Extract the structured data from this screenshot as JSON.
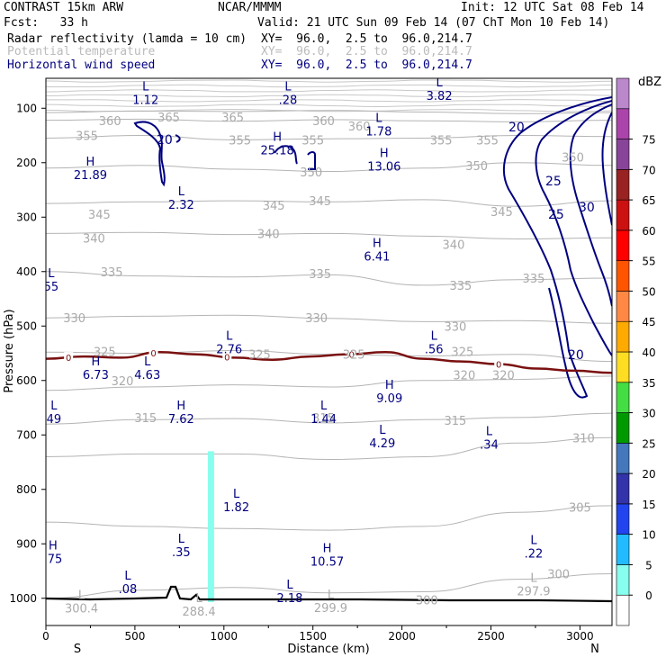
{
  "header": {
    "model": "CONTRAST 15km ARW",
    "org": "NCAR/MMMM",
    "init": "Init: 12 UTC Sat 08 Feb 14",
    "fcst": "Fcst:   33 h",
    "valid": "Valid: 21 UTC Sun 09 Feb 14 (07 ChT Mon 10 Feb 14)",
    "fields": [
      {
        "name": "Radar reflectivity (lamda = 10 cm)",
        "xy": "XY=  96.0,  2.5 to  96.0,214.7",
        "color": "#000000"
      },
      {
        "name": "Potential temperature",
        "xy": "XY=  96.0,  2.5 to  96.0,214.7",
        "color": "#bbbbbb"
      },
      {
        "name": "Horizontal wind speed",
        "xy": "XY=  96.0,  2.5 to  96.0,214.7",
        "color": "#000080"
      }
    ]
  },
  "chart_data": {
    "type": "contour",
    "xlabel": "Distance (km)",
    "ylabel": "Pressure (hPa)",
    "xlim": [
      0,
      3180
    ],
    "ylim": [
      1050,
      45
    ],
    "x_ticks": [
      0,
      500,
      1000,
      1500,
      2000,
      2500,
      3000
    ],
    "y_ticks": [
      100,
      200,
      300,
      400,
      500,
      600,
      700,
      800,
      900,
      1000
    ],
    "x_end_labels": {
      "left": "S",
      "right": "N"
    },
    "colorbar": {
      "title": "dBZ",
      "levels": [
        0,
        5,
        10,
        15,
        20,
        25,
        30,
        35,
        40,
        45,
        50,
        55,
        60,
        65,
        70,
        75
      ],
      "colors": [
        "#ffffff",
        "#88ffee",
        "#22bbff",
        "#2244ee",
        "#3333aa",
        "#4477bb",
        "#009900",
        "#44dd44",
        "#ffdd22",
        "#ffaa00",
        "#ff8844",
        "#ff5500",
        "#ff0000",
        "#cc1111",
        "#992222",
        "#884499",
        "#aa44aa",
        "#bb88cc"
      ]
    },
    "theta_levels": [
      {
        "value": 365,
        "label": "365",
        "label_x": 1050,
        "label_p": 116,
        "y": [
          108,
          105,
          106,
          104,
          107,
          110,
          108
        ]
      },
      {
        "value": 360,
        "label": "360",
        "label_x": 360,
        "label_p": 123,
        "y": [
          122,
          120,
          124,
          121,
          123,
          125,
          122
        ]
      },
      {
        "value": 355,
        "label": "355",
        "label_x": 1090,
        "label_p": 158,
        "y": [
          155,
          150,
          158,
          156,
          155,
          150,
          152
        ]
      },
      {
        "value": 350,
        "label": "350",
        "label_x": 1490,
        "label_p": 217,
        "y": [
          210,
          205,
          212,
          216,
          210,
          200,
          205
        ]
      },
      {
        "value": 345,
        "label": "345",
        "label_x": 1540,
        "label_p": 270,
        "y": [
          275,
          272,
          270,
          272,
          268,
          280,
          270
        ]
      },
      {
        "value": 340,
        "label": "340",
        "label_x": 1250,
        "label_p": 330,
        "y": [
          330,
          328,
          332,
          330,
          335,
          340,
          338
        ]
      },
      {
        "value": 335,
        "label": "335",
        "label_x": 2330,
        "label_p": 425,
        "y": [
          400,
          408,
          410,
          406,
          425,
          415,
          412
        ]
      },
      {
        "value": 330,
        "label": "330",
        "label_x": 1520,
        "label_p": 485,
        "y": [
          485,
          482,
          480,
          486,
          492,
          490,
          495
        ]
      },
      {
        "value": 325,
        "label": "325",
        "label_x": 1200,
        "label_p": 552,
        "y": [
          548,
          550,
          545,
          552,
          555,
          552,
          565
        ]
      },
      {
        "value": 320,
        "label": "320",
        "label_x": 2570,
        "label_p": 590,
        "y": [
          618,
          612,
          608,
          612,
          600,
          598,
          592
        ]
      },
      {
        "value": 315,
        "label": "315",
        "label_x": 2300,
        "label_p": 673,
        "y": [
          680,
          672,
          670,
          678,
          672,
          668,
          660
        ]
      },
      {
        "value": 310,
        "label": "310",
        "label_x": 3020,
        "label_p": 705,
        "y": [
          740,
          735,
          735,
          745,
          740,
          715,
          705
        ]
      },
      {
        "value": 305,
        "label": "305",
        "label_x": 3000,
        "label_p": 833,
        "y": [
          860,
          868,
          872,
          875,
          868,
          842,
          830
        ]
      },
      {
        "value": 300,
        "label": "300",
        "label_x": 2880,
        "label_p": 955,
        "y": [
          1000,
          985,
          980,
          990,
          988,
          965,
          955
        ]
      }
    ],
    "freezing_level": {
      "label": "0",
      "p": [
        560,
        556,
        558,
        548,
        552,
        558,
        562,
        556,
        552,
        548,
        560,
        565,
        570,
        578,
        582,
        586
      ]
    },
    "wind_contour_labels": [
      "20",
      "20",
      "25",
      "30",
      "25",
      "20"
    ],
    "extrema": [
      {
        "type": "L",
        "value": "1.12",
        "x": 560,
        "p": 67
      },
      {
        "type": "L",
        "value": ".28",
        "x": 1360,
        "p": 67
      },
      {
        "type": "L",
        "value": "3.82",
        "x": 2210,
        "p": 60
      },
      {
        "type": "L",
        "value": "1.78",
        "x": 1870,
        "p": 125
      },
      {
        "type": "H",
        "value": "25.18",
        "x": 1300,
        "p": 160
      },
      {
        "type": "H",
        "value": "13.06",
        "x": 1900,
        "p": 190
      },
      {
        "type": "H",
        "value": "21.89",
        "x": 250,
        "p": 205
      },
      {
        "type": "L",
        "value": "2.32",
        "x": 760,
        "p": 260
      },
      {
        "type": "H",
        "value": "6.41",
        "x": 1860,
        "p": 355
      },
      {
        "type": "L",
        "value": "55",
        "x": 30,
        "p": 410
      },
      {
        "type": "L",
        "value": "2.76",
        "x": 1030,
        "p": 525
      },
      {
        "type": "L",
        "value": ".56",
        "x": 2180,
        "p": 525
      },
      {
        "type": "H",
        "value": "6.73",
        "x": 280,
        "p": 572
      },
      {
        "type": "L",
        "value": "4.63",
        "x": 570,
        "p": 572
      },
      {
        "type": "H",
        "value": "9.09",
        "x": 1930,
        "p": 615
      },
      {
        "type": "L",
        "value": "49",
        "x": 45,
        "p": 653
      },
      {
        "type": "H",
        "value": "7.62",
        "x": 760,
        "p": 653
      },
      {
        "type": "L",
        "value": "1.44",
        "x": 1560,
        "p": 653
      },
      {
        "type": "L",
        "value": "4.29",
        "x": 1890,
        "p": 698
      },
      {
        "type": "L",
        "value": ".34",
        "x": 2490,
        "p": 700
      },
      {
        "type": "L",
        "value": "1.82",
        "x": 1070,
        "p": 815
      },
      {
        "type": "L",
        "value": ".35",
        "x": 760,
        "p": 898
      },
      {
        "type": "H",
        "value": "10.57",
        "x": 1580,
        "p": 915
      },
      {
        "type": "L",
        "value": ".22",
        "x": 2740,
        "p": 900
      },
      {
        "type": "H",
        "value": ".75",
        "x": 40,
        "p": 910
      },
      {
        "type": "L",
        "value": ".08",
        "x": 460,
        "p": 966
      },
      {
        "type": "L",
        "value": "2.18",
        "x": 1370,
        "p": 982
      },
      {
        "type": "L",
        "value": "300.4",
        "x": 200,
        "p": 1001,
        "faint": true
      },
      {
        "type": "L",
        "value": "288.4",
        "x": 860,
        "p": 1007,
        "faint": true
      },
      {
        "type": "L",
        "value": "299.9",
        "x": 1600,
        "p": 1000,
        "faint": true
      },
      {
        "type": "L",
        "value": "297.9",
        "x": 2740,
        "p": 970,
        "faint": true
      }
    ],
    "extra_theta_labels": [
      {
        "label": "365",
        "x": 690,
        "p": 116
      },
      {
        "label": "360",
        "x": 1560,
        "p": 123
      },
      {
        "label": "360",
        "x": 1760,
        "p": 133
      },
      {
        "label": "355",
        "x": 1500,
        "p": 158
      },
      {
        "label": "355",
        "x": 2220,
        "p": 158
      },
      {
        "label": "355",
        "x": 2480,
        "p": 158
      },
      {
        "label": "355",
        "x": 230,
        "p": 150
      },
      {
        "label": "350",
        "x": 2420,
        "p": 205
      },
      {
        "label": "350",
        "x": 2960,
        "p": 190
      },
      {
        "label": "345",
        "x": 1280,
        "p": 278
      },
      {
        "label": "345",
        "x": 300,
        "p": 295
      },
      {
        "label": "345",
        "x": 2560,
        "p": 290
      },
      {
        "label": "340",
        "x": 270,
        "p": 338
      },
      {
        "label": "340",
        "x": 2290,
        "p": 350
      },
      {
        "label": "335",
        "x": 370,
        "p": 400
      },
      {
        "label": "335",
        "x": 1540,
        "p": 404
      },
      {
        "label": "335",
        "x": 2740,
        "p": 412
      },
      {
        "label": "330",
        "x": 160,
        "p": 485
      },
      {
        "label": "330",
        "x": 2300,
        "p": 500
      },
      {
        "label": "325",
        "x": 330,
        "p": 547
      },
      {
        "label": "325",
        "x": 1730,
        "p": 552
      },
      {
        "label": "325",
        "x": 2340,
        "p": 547
      },
      {
        "label": "320",
        "x": 430,
        "p": 600
      },
      {
        "label": "320",
        "x": 2350,
        "p": 590
      },
      {
        "label": "315",
        "x": 560,
        "p": 668
      },
      {
        "label": "315",
        "x": 1560,
        "p": 668
      },
      {
        "label": "300",
        "x": 2140,
        "p": 1003
      }
    ],
    "reflectivity_column": {
      "x": [
        910,
        945
      ],
      "p_top": 730,
      "p_bottom": 1007,
      "dbz": "5-10"
    }
  }
}
